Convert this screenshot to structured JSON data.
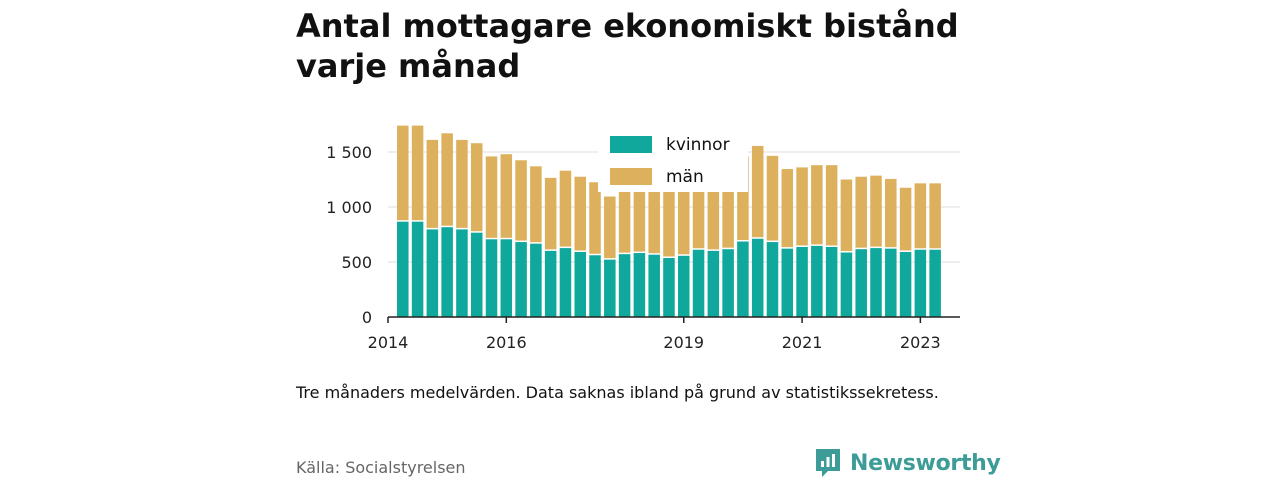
{
  "title": "Antal mottagare ekonomiskt bistånd varje månad",
  "note": "Tre månaders medelvärden. Data saknas ibland på grund av statistikssekretess.",
  "source": "Källa: Socialstyrelsen",
  "brand": {
    "name": "Newsworthy",
    "icon": "newsworthy-logo-icon",
    "color": "#3d9c98"
  },
  "chart_data": {
    "type": "bar",
    "stacked": true,
    "x_ticks": [
      {
        "label": "2014",
        "value": 2014.0
      },
      {
        "label": "2016",
        "value": 2016.0
      },
      {
        "label": "2019",
        "value": 2019.0
      },
      {
        "label": "2021",
        "value": 2021.0
      },
      {
        "label": "2023",
        "value": 2023.0
      }
    ],
    "y_ticks": [
      {
        "label": "0",
        "value": 0
      },
      {
        "label": "500",
        "value": 500
      },
      {
        "label": "1 000",
        "value": 1000
      },
      {
        "label": "1 500",
        "value": 1500
      }
    ],
    "ylim": [
      0,
      1700
    ],
    "xlim": [
      2014.0,
      2023.67
    ],
    "grid": "horizontal",
    "legend_position": "top-center",
    "x": [
      2014.25,
      2014.5,
      2014.75,
      2015.0,
      2015.25,
      2015.5,
      2015.75,
      2016.0,
      2016.25,
      2016.5,
      2016.75,
      2017.0,
      2017.25,
      2017.5,
      2017.75,
      2018.0,
      2018.25,
      2018.5,
      2018.75,
      2019.0,
      2019.25,
      2019.5,
      2019.75,
      2020.0,
      2020.25,
      2020.5,
      2020.75,
      2021.0,
      2021.25,
      2021.5,
      2021.75,
      2022.0,
      2022.25,
      2022.5,
      2022.75,
      2023.0,
      2023.25
    ],
    "series": [
      {
        "name": "kvinnor",
        "color": "#10a89c",
        "values": [
          880,
          880,
          810,
          830,
          810,
          780,
          720,
          720,
          695,
          680,
          615,
          640,
          605,
          575,
          535,
          585,
          595,
          580,
          550,
          570,
          625,
          615,
          630,
          700,
          725,
          695,
          635,
          650,
          660,
          650,
          600,
          630,
          640,
          635,
          605,
          625,
          625
        ]
      },
      {
        "name": "män",
        "color": "#ddb05d",
        "values": [
          860,
          860,
          800,
          840,
          800,
          800,
          740,
          760,
          730,
          690,
          650,
          690,
          670,
          650,
          560,
          600,
          600,
          610,
          600,
          610,
          580,
          600,
          670,
          760,
          830,
          770,
          710,
          710,
          720,
          730,
          650,
          645,
          645,
          620,
          570,
          590,
          590
        ]
      }
    ]
  }
}
